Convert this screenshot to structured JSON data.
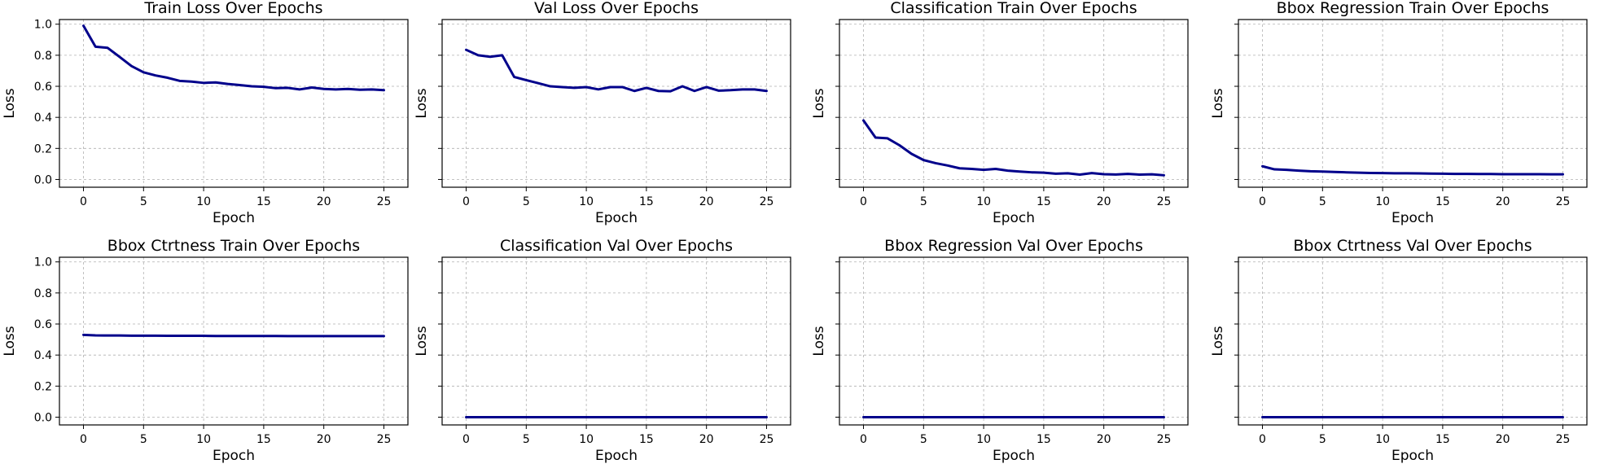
{
  "chart_data": [
    {
      "type": "line",
      "title": "Train Loss Over Epochs",
      "xlabel": "Epoch",
      "ylabel": "Loss",
      "xlim": [
        -2,
        27
      ],
      "ylim": [
        -0.05,
        1.03
      ],
      "xticks": [
        "0",
        "5",
        "10",
        "15",
        "20",
        "25"
      ],
      "yticks": [
        "0.0",
        "0.2",
        "0.4",
        "0.6",
        "0.8",
        "1.0"
      ],
      "show_yticklabels": true,
      "grid": true,
      "color": "#00008b",
      "x": [
        0,
        1,
        2,
        3,
        4,
        5,
        6,
        7,
        8,
        9,
        10,
        11,
        12,
        13,
        14,
        15,
        16,
        17,
        18,
        19,
        20,
        21,
        22,
        23,
        24,
        25
      ],
      "values": [
        0.99,
        0.855,
        0.848,
        0.79,
        0.73,
        0.69,
        0.67,
        0.655,
        0.635,
        0.63,
        0.622,
        0.625,
        0.615,
        0.608,
        0.6,
        0.597,
        0.588,
        0.59,
        0.58,
        0.592,
        0.583,
        0.58,
        0.583,
        0.578,
        0.58,
        0.575
      ]
    },
    {
      "type": "line",
      "title": "Val Loss Over Epochs",
      "xlabel": "Epoch",
      "ylabel": "Loss",
      "xlim": [
        -2,
        27
      ],
      "ylim": [
        -0.05,
        1.03
      ],
      "xticks": [
        "0",
        "5",
        "10",
        "15",
        "20",
        "25"
      ],
      "yticks": [
        "0.0",
        "0.2",
        "0.4",
        "0.6",
        "0.8",
        "1.0"
      ],
      "show_yticklabels": false,
      "grid": true,
      "color": "#00008b",
      "x": [
        0,
        1,
        2,
        3,
        4,
        5,
        6,
        7,
        8,
        9,
        10,
        11,
        12,
        13,
        14,
        15,
        16,
        17,
        18,
        19,
        20,
        21,
        22,
        23,
        24,
        25
      ],
      "values": [
        0.835,
        0.8,
        0.79,
        0.8,
        0.66,
        0.64,
        0.62,
        0.6,
        0.595,
        0.59,
        0.595,
        0.58,
        0.595,
        0.595,
        0.57,
        0.59,
        0.57,
        0.568,
        0.6,
        0.57,
        0.595,
        0.572,
        0.575,
        0.58,
        0.58,
        0.57
      ]
    },
    {
      "type": "line",
      "title": "Classification Train Over Epochs",
      "xlabel": "Epoch",
      "ylabel": "Loss",
      "xlim": [
        -2,
        27
      ],
      "ylim": [
        -0.05,
        1.03
      ],
      "xticks": [
        "0",
        "5",
        "10",
        "15",
        "20",
        "25"
      ],
      "yticks": [
        "0.0",
        "0.2",
        "0.4",
        "0.6",
        "0.8",
        "1.0"
      ],
      "show_yticklabels": false,
      "grid": true,
      "color": "#00008b",
      "x": [
        0,
        1,
        2,
        3,
        4,
        5,
        6,
        7,
        8,
        9,
        10,
        11,
        12,
        13,
        14,
        15,
        16,
        17,
        18,
        19,
        20,
        21,
        22,
        23,
        24,
        25
      ],
      "values": [
        0.38,
        0.27,
        0.265,
        0.22,
        0.165,
        0.125,
        0.105,
        0.09,
        0.072,
        0.068,
        0.062,
        0.068,
        0.057,
        0.051,
        0.046,
        0.044,
        0.037,
        0.04,
        0.031,
        0.041,
        0.034,
        0.032,
        0.036,
        0.031,
        0.033,
        0.027
      ]
    },
    {
      "type": "line",
      "title": "Bbox Regression Train Over Epochs",
      "xlabel": "Epoch",
      "ylabel": "Loss",
      "xlim": [
        -2,
        27
      ],
      "ylim": [
        -0.05,
        1.03
      ],
      "xticks": [
        "0",
        "5",
        "10",
        "15",
        "20",
        "25"
      ],
      "yticks": [
        "0.0",
        "0.2",
        "0.4",
        "0.6",
        "0.8",
        "1.0"
      ],
      "show_yticklabels": false,
      "grid": true,
      "color": "#00008b",
      "x": [
        0,
        1,
        2,
        3,
        4,
        5,
        6,
        7,
        8,
        9,
        10,
        11,
        12,
        13,
        14,
        15,
        16,
        17,
        18,
        19,
        20,
        21,
        22,
        23,
        24,
        25
      ],
      "values": [
        0.085,
        0.065,
        0.062,
        0.057,
        0.053,
        0.051,
        0.048,
        0.046,
        0.044,
        0.042,
        0.041,
        0.04,
        0.04,
        0.039,
        0.038,
        0.037,
        0.036,
        0.036,
        0.035,
        0.035,
        0.034,
        0.034,
        0.034,
        0.034,
        0.033,
        0.033
      ]
    },
    {
      "type": "line",
      "title": "Bbox Ctrtness Train Over Epochs",
      "xlabel": "Epoch",
      "ylabel": "Loss",
      "xlim": [
        -2,
        27
      ],
      "ylim": [
        -0.05,
        1.03
      ],
      "xticks": [
        "0",
        "5",
        "10",
        "15",
        "20",
        "25"
      ],
      "yticks": [
        "0.0",
        "0.2",
        "0.4",
        "0.6",
        "0.8",
        "1.0"
      ],
      "show_yticklabels": true,
      "grid": true,
      "color": "#00008b",
      "x": [
        0,
        1,
        2,
        3,
        4,
        5,
        6,
        7,
        8,
        9,
        10,
        11,
        12,
        13,
        14,
        15,
        16,
        17,
        18,
        19,
        20,
        21,
        22,
        23,
        24,
        25
      ],
      "values": [
        0.53,
        0.527,
        0.526,
        0.526,
        0.525,
        0.525,
        0.525,
        0.524,
        0.524,
        0.524,
        0.524,
        0.523,
        0.523,
        0.523,
        0.523,
        0.523,
        0.523,
        0.522,
        0.522,
        0.522,
        0.522,
        0.522,
        0.522,
        0.522,
        0.522,
        0.522
      ]
    },
    {
      "type": "line",
      "title": "Classification Val Over Epochs",
      "xlabel": "Epoch",
      "ylabel": "Loss",
      "xlim": [
        -2,
        27
      ],
      "ylim": [
        -0.05,
        1.03
      ],
      "xticks": [
        "0",
        "5",
        "10",
        "15",
        "20",
        "25"
      ],
      "yticks": [
        "0.0",
        "0.2",
        "0.4",
        "0.6",
        "0.8",
        "1.0"
      ],
      "show_yticklabels": false,
      "grid": true,
      "color": "#00008b",
      "x": [
        0,
        1,
        2,
        3,
        4,
        5,
        6,
        7,
        8,
        9,
        10,
        11,
        12,
        13,
        14,
        15,
        16,
        17,
        18,
        19,
        20,
        21,
        22,
        23,
        24,
        25
      ],
      "values": [
        0,
        0,
        0,
        0,
        0,
        0,
        0,
        0,
        0,
        0,
        0,
        0,
        0,
        0,
        0,
        0,
        0,
        0,
        0,
        0,
        0,
        0,
        0,
        0,
        0,
        0
      ]
    },
    {
      "type": "line",
      "title": "Bbox Regression Val Over Epochs",
      "xlabel": "Epoch",
      "ylabel": "Loss",
      "xlim": [
        -2,
        27
      ],
      "ylim": [
        -0.05,
        1.03
      ],
      "xticks": [
        "0",
        "5",
        "10",
        "15",
        "20",
        "25"
      ],
      "yticks": [
        "0.0",
        "0.2",
        "0.4",
        "0.6",
        "0.8",
        "1.0"
      ],
      "show_yticklabels": false,
      "grid": true,
      "color": "#00008b",
      "x": [
        0,
        1,
        2,
        3,
        4,
        5,
        6,
        7,
        8,
        9,
        10,
        11,
        12,
        13,
        14,
        15,
        16,
        17,
        18,
        19,
        20,
        21,
        22,
        23,
        24,
        25
      ],
      "values": [
        0,
        0,
        0,
        0,
        0,
        0,
        0,
        0,
        0,
        0,
        0,
        0,
        0,
        0,
        0,
        0,
        0,
        0,
        0,
        0,
        0,
        0,
        0,
        0,
        0,
        0
      ]
    },
    {
      "type": "line",
      "title": "Bbox Ctrtness Val Over Epochs",
      "xlabel": "Epoch",
      "ylabel": "Loss",
      "xlim": [
        -2,
        27
      ],
      "ylim": [
        -0.05,
        1.03
      ],
      "xticks": [
        "0",
        "5",
        "10",
        "15",
        "20",
        "25"
      ],
      "yticks": [
        "0.0",
        "0.2",
        "0.4",
        "0.6",
        "0.8",
        "1.0"
      ],
      "show_yticklabels": false,
      "grid": true,
      "color": "#00008b",
      "x": [
        0,
        1,
        2,
        3,
        4,
        5,
        6,
        7,
        8,
        9,
        10,
        11,
        12,
        13,
        14,
        15,
        16,
        17,
        18,
        19,
        20,
        21,
        22,
        23,
        24,
        25
      ],
      "values": [
        0,
        0,
        0,
        0,
        0,
        0,
        0,
        0,
        0,
        0,
        0,
        0,
        0,
        0,
        0,
        0,
        0,
        0,
        0,
        0,
        0,
        0,
        0,
        0,
        0,
        0
      ]
    }
  ]
}
